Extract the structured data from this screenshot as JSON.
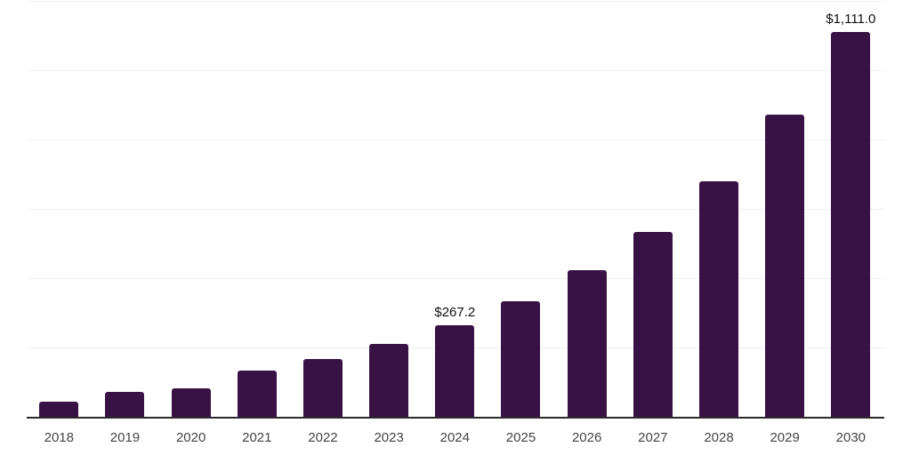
{
  "chart_data": {
    "type": "bar",
    "title": "",
    "xlabel": "",
    "ylabel": "",
    "categories": [
      "2018",
      "2019",
      "2020",
      "2021",
      "2022",
      "2023",
      "2024",
      "2025",
      "2026",
      "2027",
      "2028",
      "2029",
      "2030"
    ],
    "values": [
      46,
      74,
      84,
      136,
      168,
      213,
      267.2,
      335,
      425,
      535,
      681,
      872,
      1111
    ],
    "data_labels": [
      "",
      "",
      "",
      "",
      "",
      "",
      "$267.2",
      "",
      "",
      "",
      "",
      "",
      "$1,111.0"
    ],
    "ylim": [
      0,
      1200
    ],
    "gridline_step": 200,
    "grid": "horizontal",
    "legend": "none",
    "y_tick_labels_visible": false,
    "colors": {
      "bar": "#381245",
      "gridline": "#f0f0f0",
      "axis_line": "#2b2b2b",
      "tick_label": "#454545",
      "data_label": "#111111",
      "background": "#ffffff"
    }
  }
}
